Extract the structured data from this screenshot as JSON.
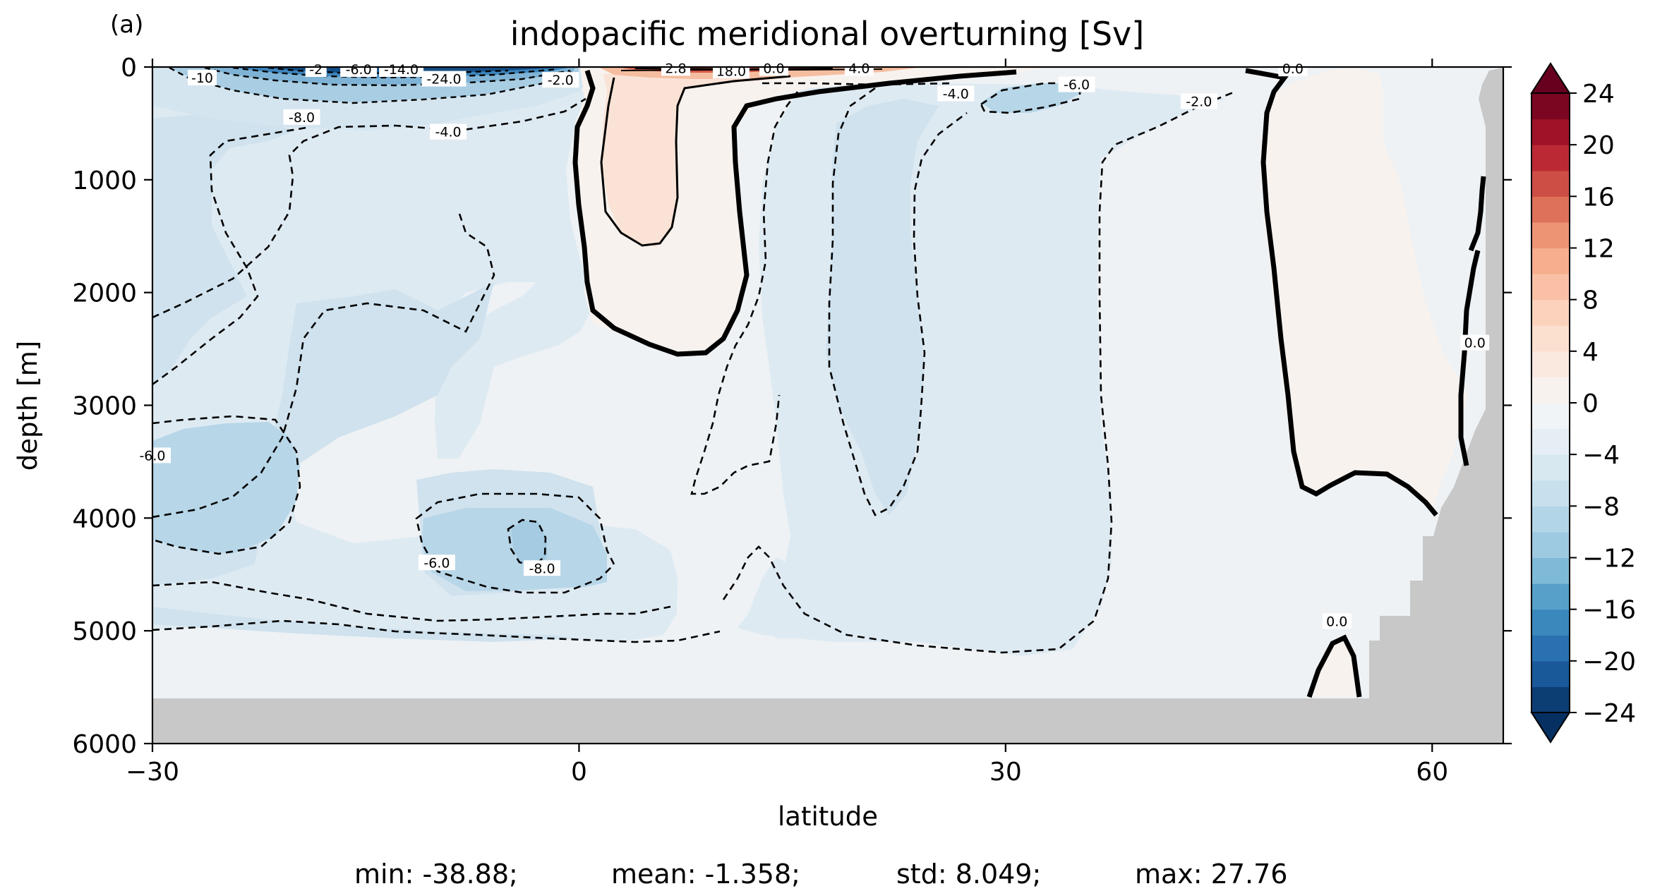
{
  "panel_label": "(a)",
  "chart_data": {
    "type": "heatmap",
    "title": "indopacific meridional overturning [Sv]",
    "xlabel": "latitude",
    "ylabel": "depth [m]",
    "xlim": [
      -30,
      65
    ],
    "ylim": [
      6000,
      0
    ],
    "x_ticks": [
      -30,
      0,
      30,
      60
    ],
    "x_tick_labels": [
      "−30",
      "0",
      "30",
      "60"
    ],
    "y_ticks": [
      0,
      1000,
      2000,
      3000,
      4000,
      5000,
      6000
    ],
    "y_tick_labels": [
      "0",
      "1000",
      "2000",
      "3000",
      "4000",
      "5000",
      "6000"
    ],
    "colorbar": {
      "cmap": "RdBu_r",
      "vmin": -24,
      "vmax": 24,
      "step": 2,
      "extend": "both",
      "ticks": [
        24,
        20,
        16,
        12,
        8,
        4,
        0,
        -4,
        -8,
        -12,
        -16,
        -20,
        -24
      ],
      "tick_labels": [
        "24",
        "20",
        "16",
        "12",
        "8",
        "4",
        "0",
        "−4",
        "−8",
        "−12",
        "−16",
        "−20",
        "−24"
      ]
    },
    "land_color": "#c8c8c8",
    "contour_labels": [
      {
        "text": "-10",
        "lat": -26.5,
        "depth": 100
      },
      {
        "text": "-2",
        "lat": -18.5,
        "depth": 25
      },
      {
        "text": "-6.0",
        "lat": -15.5,
        "depth": 25
      },
      {
        "text": "-14.0",
        "lat": -12.5,
        "depth": 25
      },
      {
        "text": "-24.0",
        "lat": -9.5,
        "depth": 110
      },
      {
        "text": "-8.0",
        "lat": -19.5,
        "depth": 450
      },
      {
        "text": "-4.0",
        "lat": -9.2,
        "depth": 580
      },
      {
        "text": "-2.0",
        "lat": -1.3,
        "depth": 120
      },
      {
        "text": "2.8",
        "lat": 6.8,
        "depth": 15
      },
      {
        "text": "18.0",
        "lat": 10.7,
        "depth": 40
      },
      {
        "text": "0.0",
        "lat": 13.7,
        "depth": 15
      },
      {
        "text": "4.0",
        "lat": 19.7,
        "depth": 15
      },
      {
        "text": "-4.0",
        "lat": 26.5,
        "depth": 240
      },
      {
        "text": "-6.0",
        "lat": 35.0,
        "depth": 160
      },
      {
        "text": "-2.0",
        "lat": 43.6,
        "depth": 310
      },
      {
        "text": "0.0",
        "lat": 50.2,
        "depth": 20
      },
      {
        "text": "0.0",
        "lat": 63.0,
        "depth": 2450
      },
      {
        "text": "-6.0",
        "lat": -30.0,
        "depth": 3450
      },
      {
        "text": "-6.0",
        "lat": -10.0,
        "depth": 4400
      },
      {
        "text": "-8.0",
        "lat": -2.6,
        "depth": 4450
      },
      {
        "text": "0.0",
        "lat": 53.3,
        "depth": 4920
      }
    ],
    "stats": {
      "min": "min: -38.88;",
      "mean": "mean: -1.358;",
      "std": "std: 8.049;",
      "max": "max: 27.76"
    }
  }
}
